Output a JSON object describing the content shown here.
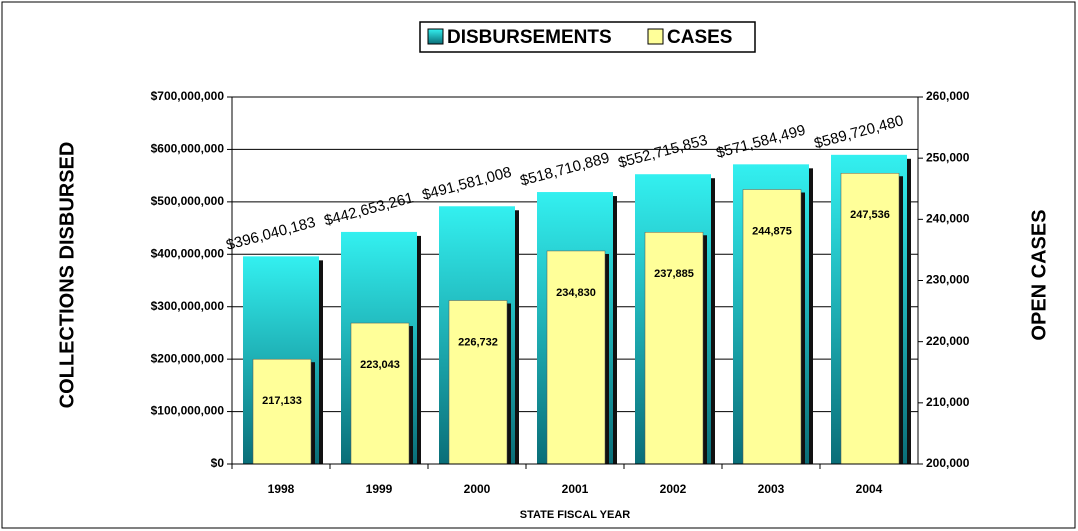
{
  "chart_data": {
    "type": "bar",
    "x_label": "STATE FISCAL YEAR",
    "y_label": "COLLECTIONS DISBURSED",
    "y2_label": "OPEN CASES",
    "categories": [
      "1998",
      "1999",
      "2000",
      "2001",
      "2002",
      "2003",
      "2004"
    ],
    "series": [
      {
        "name": "DISBURSEMENTS",
        "color": "#33f0f0",
        "values": [
          396040183,
          442653261,
          491581008,
          518710889,
          552715853,
          571584499,
          589720480
        ],
        "value_labels": [
          "$396,040,183",
          "$442,653,261",
          "$491,581,008",
          "$518,710,889",
          "$552,715,853",
          "$571,584,499",
          "$589,720,480"
        ]
      },
      {
        "name": "CASES",
        "color": "#ffff99",
        "axis": "y2",
        "values": [
          217133,
          223043,
          226732,
          234830,
          237885,
          244875,
          247536
        ],
        "value_labels": [
          "217,133",
          "223,043",
          "226,732",
          "234,830",
          "237,885",
          "244,875",
          "247,536"
        ]
      }
    ],
    "ylim": [
      0,
      700000000
    ],
    "yticks": [
      {
        "value": 0,
        "label": "$0"
      },
      {
        "value": 100000000,
        "label": "$100,000,000"
      },
      {
        "value": 200000000,
        "label": "$200,000,000"
      },
      {
        "value": 300000000,
        "label": "$300,000,000"
      },
      {
        "value": 400000000,
        "label": "$400,000,000"
      },
      {
        "value": 500000000,
        "label": "$500,000,000"
      },
      {
        "value": 600000000,
        "label": "$600,000,000"
      },
      {
        "value": 700000000,
        "label": "$700,000,000"
      }
    ],
    "y2lim": [
      200000,
      260000
    ],
    "y2ticks": [
      {
        "value": 200000,
        "label": "200,000"
      },
      {
        "value": 210000,
        "label": "210,000"
      },
      {
        "value": 220000,
        "label": "220,000"
      },
      {
        "value": 230000,
        "label": "230,000"
      },
      {
        "value": 240000,
        "label": "240,000"
      },
      {
        "value": 250000,
        "label": "250,000"
      },
      {
        "value": 260000,
        "label": "260,000"
      }
    ],
    "grid": true
  }
}
